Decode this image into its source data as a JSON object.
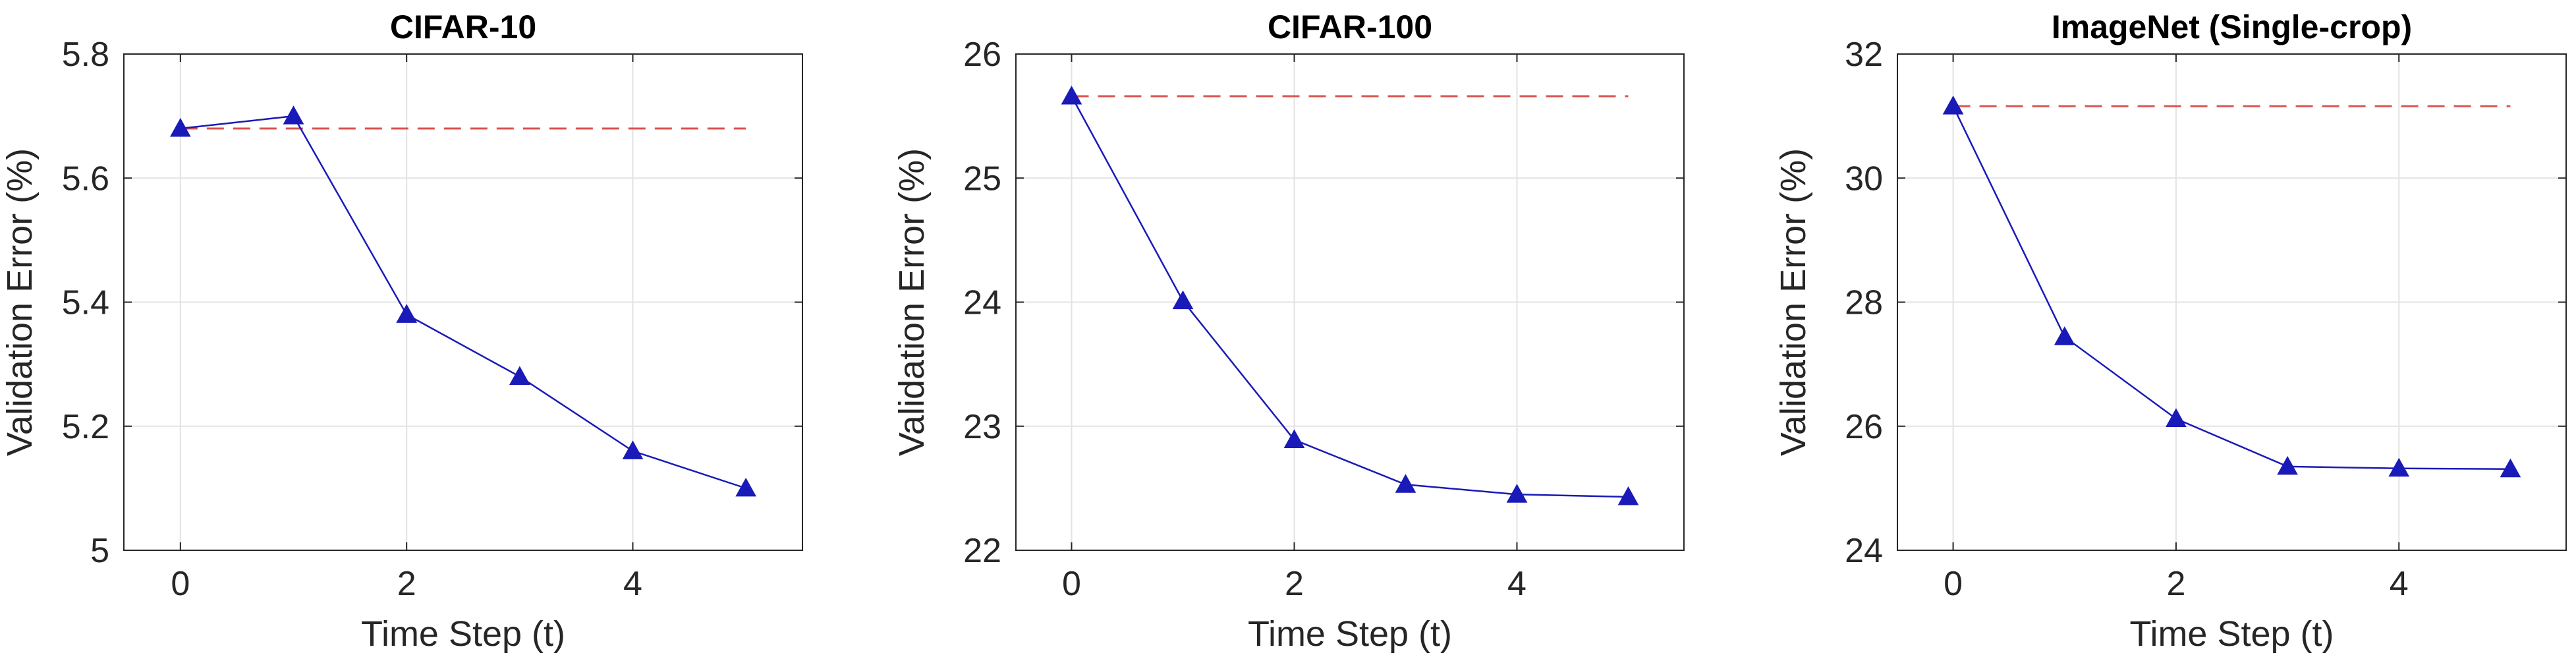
{
  "chart_data": [
    {
      "type": "line",
      "title": "CIFAR-10",
      "xlabel": "Time Step (t)",
      "ylabel": "Validation Error (%)",
      "xlim": [
        -0.5,
        5.5
      ],
      "ylim": [
        5,
        5.8
      ],
      "xticks": [
        0,
        2,
        4
      ],
      "xtick_labels": [
        "0",
        "2",
        "4"
      ],
      "yticks": [
        5,
        5.2,
        5.4,
        5.6,
        5.8
      ],
      "ytick_labels": [
        "5",
        "5.2",
        "5.4",
        "5.6",
        "5.8"
      ],
      "grid": true,
      "series": [
        {
          "x": [
            0,
            1,
            2,
            3,
            4,
            5
          ],
          "y": [
            5.68,
            5.7,
            5.38,
            5.28,
            5.16,
            5.1
          ],
          "color": "#1a1ab8",
          "marker": "triangle"
        }
      ],
      "baseline": {
        "y": 5.68,
        "x_range": [
          0,
          5
        ],
        "color": "#d9534f",
        "style": "dashed"
      }
    },
    {
      "type": "line",
      "title": "CIFAR-100",
      "xlabel": "Time Step (t)",
      "ylabel": "Validation Error (%)",
      "xlim": [
        -0.5,
        5.5
      ],
      "ylim": [
        22,
        26
      ],
      "xticks": [
        0,
        2,
        4
      ],
      "xtick_labels": [
        "0",
        "2",
        "4"
      ],
      "yticks": [
        22,
        23,
        24,
        25,
        26
      ],
      "ytick_labels": [
        "22",
        "23",
        "24",
        "25",
        "26"
      ],
      "grid": true,
      "series": [
        {
          "x": [
            0,
            1,
            2,
            3,
            4,
            5
          ],
          "y": [
            25.66,
            24.01,
            22.89,
            22.53,
            22.45,
            22.43
          ],
          "color": "#1a1ab8",
          "marker": "triangle"
        }
      ],
      "baseline": {
        "y": 25.66,
        "x_range": [
          0,
          5
        ],
        "color": "#d9534f",
        "style": "dashed"
      }
    },
    {
      "type": "line",
      "title": "ImageNet (Single-crop)",
      "xlabel": "Time Step (t)",
      "ylabel": "Validation Error (%)",
      "xlim": [
        -0.5,
        5.5
      ],
      "ylim": [
        24,
        32
      ],
      "xticks": [
        0,
        2,
        4
      ],
      "xtick_labels": [
        "0",
        "2",
        "4"
      ],
      "yticks": [
        24,
        26,
        28,
        30,
        32
      ],
      "ytick_labels": [
        "24",
        "26",
        "28",
        "30",
        "32"
      ],
      "grid": true,
      "series": [
        {
          "x": [
            0,
            1,
            2,
            3,
            4,
            5
          ],
          "y": [
            31.16,
            27.44,
            26.12,
            25.35,
            25.32,
            25.31
          ],
          "color": "#1a1ab8",
          "marker": "triangle"
        }
      ],
      "baseline": {
        "y": 31.16,
        "x_range": [
          0,
          5
        ],
        "color": "#d9534f",
        "style": "dashed"
      }
    }
  ]
}
